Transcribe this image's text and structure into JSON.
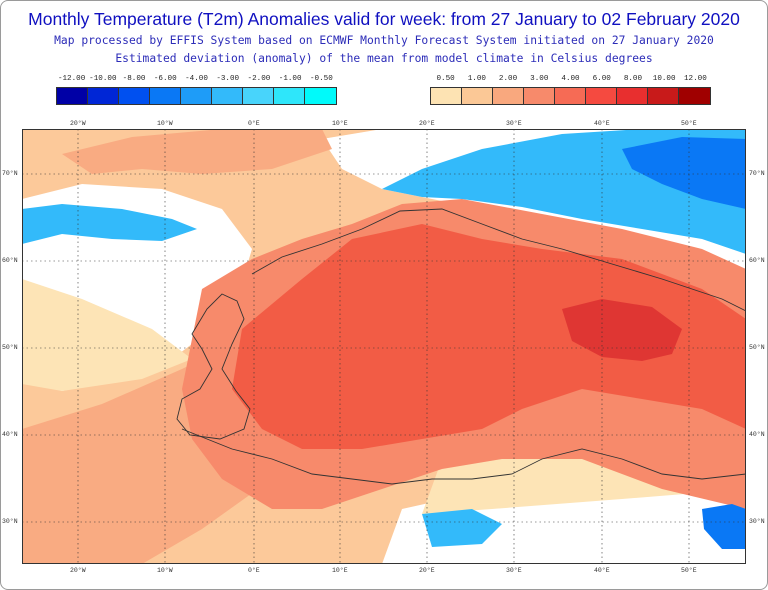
{
  "header": {
    "title": "Monthly Temperature (T2m) Anomalies valid for week: from 27 January to 02 February 2020",
    "subtitle_1": "Map processed by EFFIS System based on ECMWF Monthly Forecast System initiated on 27 January 2020",
    "subtitle_2": "Estimated deviation (anomaly) of the mean from model climate in Celsius degrees"
  },
  "legend_negative": {
    "labels": [
      "-12.00",
      "-10.00",
      "-8.00",
      "-6.00",
      "-4.00",
      "-3.00",
      "-2.00",
      "-1.00",
      "-0.50"
    ],
    "colors": [
      "#0000a6",
      "#0026d6",
      "#0050f0",
      "#0a78f5",
      "#1e9cf8",
      "#33bafa",
      "#48d4fb",
      "#2ee6fa",
      "#00fafa"
    ]
  },
  "legend_positive": {
    "labels": [
      "0.50",
      "1.00",
      "2.00",
      "3.00",
      "4.00",
      "6.00",
      "8.00",
      "10.00",
      "12.00"
    ],
    "colors": [
      "#fde3b3",
      "#fbc896",
      "#f9a87e",
      "#f78a6b",
      "#f66b55",
      "#f54a40",
      "#e82f2f",
      "#c81a1a",
      "#a00000"
    ]
  },
  "map": {
    "lon_labels": [
      "20°W",
      "10°W",
      "0°E",
      "10°E",
      "20°E",
      "30°E",
      "40°E",
      "50°E"
    ],
    "lat_labels": [
      "70°N",
      "60°N",
      "50°N",
      "40°N",
      "30°N"
    ]
  }
}
